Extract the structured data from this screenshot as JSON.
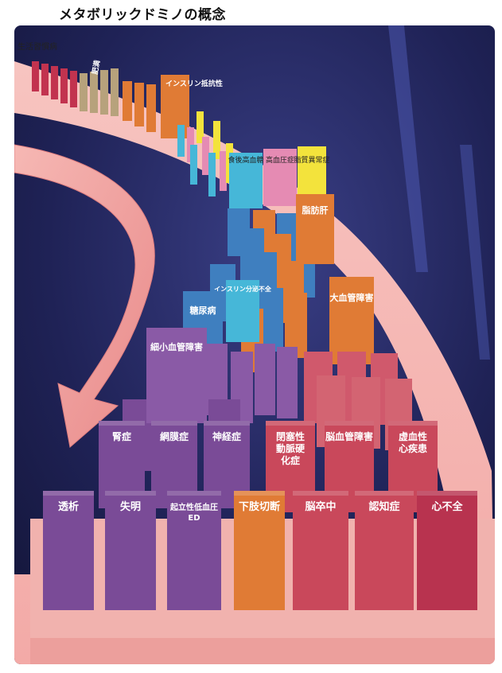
{
  "title": "メタボリックドミノの概念",
  "colors": {
    "background": "#1e1f4a",
    "road": "#f5b7b3",
    "arrow": "#f3a19f",
    "purple": "#7a4b97",
    "orange": "#e07b35",
    "red": "#c9485b",
    "blue": "#3f7fbf",
    "cyan": "#46b7d8",
    "yellow": "#f3e33c",
    "pink": "#e58bb3",
    "crimson": "#b8334f",
    "beige": "#b7a27c"
  },
  "top_labels": {
    "lifestyle": "生活習慣病",
    "obesity": "肥満",
    "insulin_resistance": "インスリン抵抗性"
  },
  "middle_labels": {
    "postprandial": "食後高血糖",
    "hypertension": "高血圧症",
    "dyslipidemia": "脂質異常症",
    "fatty_liver": "脂肪肝",
    "insulin_deficiency": "インスリン分泌不全",
    "diabetes": "糖尿病",
    "macrovascular": "大血管障害",
    "microvascular": "細小血管障害"
  },
  "row2": [
    "腎症",
    "網膜症",
    "神経症",
    "閉塞性動脈硬化症",
    "脳血管障害",
    "虚血性心疾患"
  ],
  "row1": [
    "透析",
    "失明",
    "起立性低血圧ED",
    "下肢切断",
    "脳卒中",
    "認知症",
    "心不全"
  ]
}
